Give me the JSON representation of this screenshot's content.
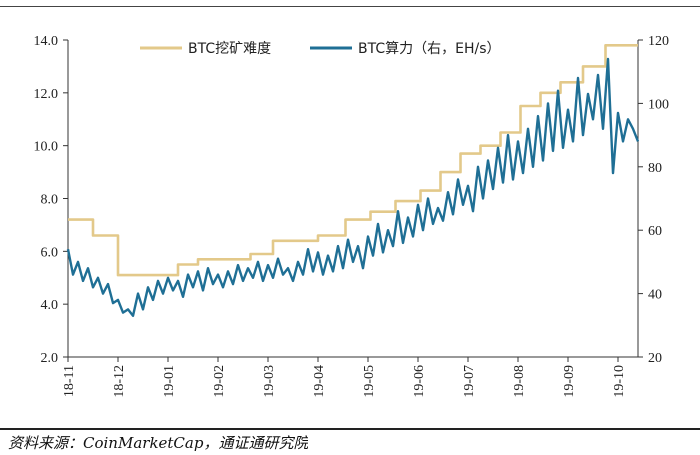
{
  "chart_data": {
    "type": "line",
    "x_tick_labels": [
      "18-11",
      "18-12",
      "19-01",
      "19-02",
      "19-03",
      "19-04",
      "19-05",
      "19-06",
      "19-07",
      "19-08",
      "19-09",
      "19-10"
    ],
    "y_left": {
      "ticks": [
        "2.0",
        "4.0",
        "6.0",
        "8.0",
        "10.0",
        "12.0",
        "14.0"
      ],
      "ylim": [
        2.0,
        14.0
      ]
    },
    "y_right": {
      "ticks": [
        "20",
        "40",
        "60",
        "80",
        "100",
        "120"
      ],
      "ylim": [
        20,
        120
      ]
    },
    "grid": false,
    "legend_position": "top",
    "series": [
      {
        "name": "BTC挖矿难度",
        "axis": "left",
        "color": "#e3c98a",
        "step": true,
        "x": [
          0,
          0.5,
          0.5,
          1.0,
          1.0,
          1.5,
          1.5,
          1.85,
          1.85,
          2.2,
          2.2,
          2.6,
          2.6,
          3.1,
          3.1,
          3.65,
          3.65,
          4.1,
          4.1,
          4.55,
          4.55,
          5.0,
          5.0,
          5.55,
          5.55,
          6.05,
          6.05,
          6.55,
          6.55,
          7.05,
          7.05,
          7.45,
          7.45,
          7.85,
          7.85,
          8.25,
          8.25,
          8.65,
          8.65,
          9.05,
          9.05,
          9.45,
          9.45,
          9.85,
          9.85,
          10.3,
          10.3,
          10.75,
          10.75,
          11.4
        ],
        "y": [
          7.2,
          7.2,
          6.6,
          6.6,
          5.1,
          5.1,
          5.1,
          5.1,
          5.1,
          5.1,
          5.5,
          5.5,
          5.7,
          5.7,
          5.7,
          5.7,
          5.9,
          5.9,
          6.4,
          6.4,
          6.4,
          6.4,
          6.6,
          6.6,
          7.2,
          7.2,
          7.5,
          7.5,
          7.9,
          7.9,
          8.3,
          8.3,
          9.0,
          9.0,
          9.7,
          9.7,
          10.0,
          10.0,
          10.5,
          10.5,
          11.5,
          11.5,
          12.0,
          12.0,
          12.4,
          12.4,
          13.0,
          13.0,
          13.8,
          13.8
        ]
      },
      {
        "name": "BTC算力（右，EH/s）",
        "axis": "right",
        "color": "#1f6f95",
        "x": [
          0,
          0.1,
          0.2,
          0.3,
          0.4,
          0.5,
          0.6,
          0.7,
          0.8,
          0.9,
          1.0,
          1.1,
          1.2,
          1.3,
          1.4,
          1.5,
          1.6,
          1.7,
          1.8,
          1.9,
          2.0,
          2.1,
          2.2,
          2.3,
          2.4,
          2.5,
          2.6,
          2.7,
          2.8,
          2.9,
          3.0,
          3.1,
          3.2,
          3.3,
          3.4,
          3.5,
          3.6,
          3.7,
          3.8,
          3.9,
          4.0,
          4.1,
          4.2,
          4.3,
          4.4,
          4.5,
          4.6,
          4.7,
          4.8,
          4.9,
          5.0,
          5.1,
          5.2,
          5.3,
          5.4,
          5.5,
          5.6,
          5.7,
          5.8,
          5.9,
          6.0,
          6.1,
          6.2,
          6.3,
          6.4,
          6.5,
          6.6,
          6.7,
          6.8,
          6.9,
          7.0,
          7.1,
          7.2,
          7.3,
          7.4,
          7.5,
          7.6,
          7.7,
          7.8,
          7.9,
          8.0,
          8.1,
          8.2,
          8.3,
          8.4,
          8.5,
          8.6,
          8.7,
          8.8,
          8.9,
          9.0,
          9.1,
          9.2,
          9.3,
          9.4,
          9.5,
          9.6,
          9.7,
          9.8,
          9.9,
          10.0,
          10.1,
          10.2,
          10.3,
          10.4,
          10.5,
          10.6,
          10.7,
          10.8,
          10.9,
          11.0,
          11.1,
          11.2,
          11.3,
          11.4
        ],
        "y": [
          54,
          46,
          50,
          44,
          48,
          42,
          45,
          40,
          43,
          37,
          38,
          34,
          35,
          33,
          40,
          35,
          42,
          38,
          44,
          40,
          45,
          41,
          44,
          39,
          46,
          42,
          47,
          41,
          48,
          43,
          46,
          42,
          47,
          43,
          49,
          44,
          48,
          45,
          50,
          44,
          49,
          45,
          51,
          46,
          48,
          44,
          50,
          46,
          54,
          47,
          53,
          46,
          52,
          47,
          55,
          48,
          57,
          50,
          55,
          48,
          58,
          52,
          62,
          53,
          60,
          55,
          66,
          56,
          64,
          58,
          68,
          60,
          70,
          62,
          67,
          63,
          72,
          65,
          76,
          68,
          74,
          66,
          80,
          70,
          82,
          73,
          86,
          75,
          90,
          76,
          88,
          78,
          92,
          80,
          96,
          82,
          100,
          85,
          104,
          86,
          98,
          88,
          108,
          90,
          103,
          95,
          109,
          92,
          114,
          78,
          97,
          88,
          95,
          92,
          88
        ]
      }
    ]
  },
  "legend": {
    "items": [
      {
        "label": "BTC挖矿难度",
        "color": "#e3c98a"
      },
      {
        "label": "BTC算力（右，EH/s）",
        "color": "#1f6f95"
      }
    ]
  },
  "source_text": "资料来源：CoinMarketCap，通证通研究院"
}
